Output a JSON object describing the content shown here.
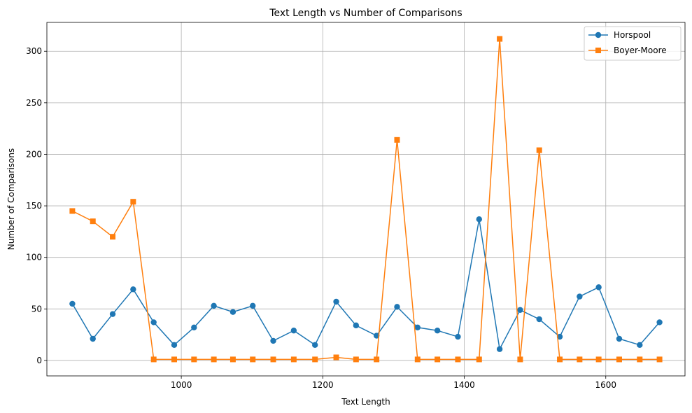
{
  "chart_data": {
    "type": "line",
    "title": "Text Length vs Number of Comparisons",
    "xlabel": "Text Length",
    "ylabel": "Number of Comparisons",
    "xlim": [
      810,
      1712
    ],
    "ylim": [
      -15,
      328
    ],
    "xticks": [
      1000,
      1200,
      1400,
      1600
    ],
    "yticks": [
      0,
      50,
      100,
      150,
      200,
      250,
      300
    ],
    "grid": true,
    "legend_position": "top-right",
    "x": [
      846,
      875,
      903,
      932,
      961,
      990,
      1018,
      1046,
      1073,
      1101,
      1130,
      1159,
      1189,
      1219,
      1247,
      1276,
      1305,
      1334,
      1362,
      1391,
      1421,
      1450,
      1479,
      1506,
      1535,
      1563,
      1590,
      1619,
      1648,
      1676
    ],
    "series": [
      {
        "name": "Horspool",
        "color": "#1f77b4",
        "marker": "circle",
        "values": [
          55,
          21,
          45,
          69,
          37,
          15,
          32,
          53,
          47,
          53,
          19,
          29,
          15,
          57,
          34,
          24,
          52,
          32,
          29,
          23,
          137,
          11,
          49,
          40,
          23,
          62,
          71,
          21,
          15,
          37
        ]
      },
      {
        "name": "Boyer-Moore",
        "color": "#ff7f0e",
        "marker": "square",
        "values": [
          145,
          135,
          120,
          154,
          1,
          1,
          1,
          1,
          1,
          1,
          1,
          1,
          1,
          3,
          1,
          1,
          214,
          1,
          1,
          1,
          1,
          312,
          1,
          204,
          1,
          1,
          1,
          1,
          1,
          1
        ]
      }
    ]
  }
}
